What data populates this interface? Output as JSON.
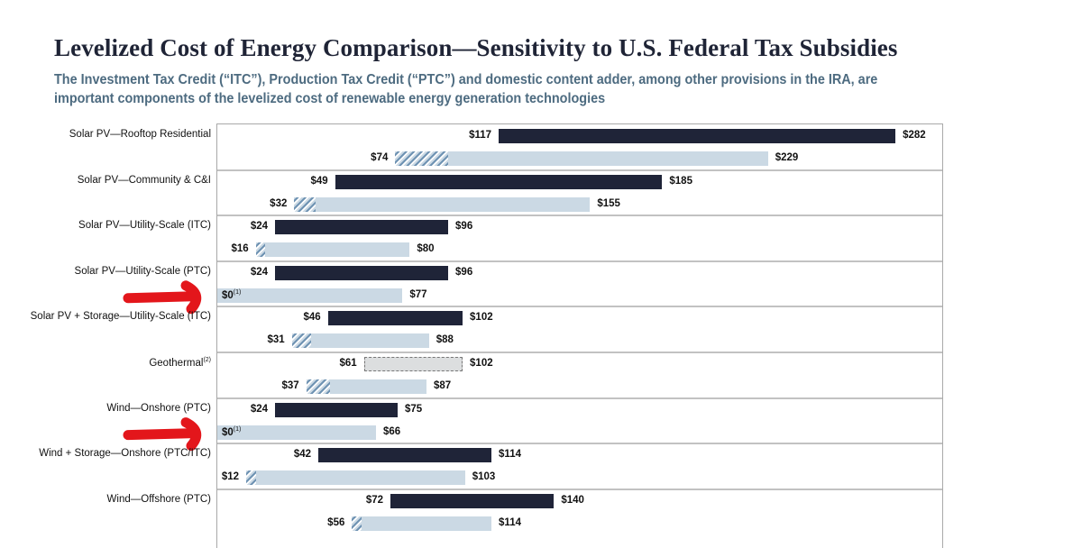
{
  "title": "Levelized Cost of Energy Comparison—Sensitivity to U.S. Federal Tax Subsidies",
  "subtitle": "The Investment Tax Credit (“ITC”), Production Tax Credit (“PTC”) and domestic content adder, among other provisions in the IRA, are important components of the levelized cost of renewable energy generation technologies",
  "chart_data": {
    "type": "bar",
    "orientation": "horizontal floating range",
    "xlim": [
      0,
      300
    ],
    "units": "$",
    "colors": {
      "unsubsidized": "#1f2438",
      "subsidized": "#cbd9e4",
      "hatch": "#6f93b3",
      "geothermal_unsubsidized": "#dcdedf",
      "annotation_arrow": "#e3161b"
    },
    "categories": [
      {
        "name": "Solar PV—Rooftop Residential",
        "sup": "",
        "unsubsidized": [
          117,
          282
        ],
        "subsidized": [
          74,
          229
        ],
        "hatched_to": 96,
        "low_note": ""
      },
      {
        "name": "Solar PV—Community & C&I",
        "sup": "",
        "unsubsidized": [
          49,
          185
        ],
        "subsidized": [
          32,
          155
        ],
        "hatched_to": 41,
        "low_note": ""
      },
      {
        "name": "Solar PV—Utility-Scale (ITC)",
        "sup": "",
        "unsubsidized": [
          24,
          96
        ],
        "subsidized": [
          16,
          80
        ],
        "hatched_to": 20,
        "low_note": ""
      },
      {
        "name": "Solar PV—Utility-Scale (PTC)",
        "sup": "",
        "unsubsidized": [
          24,
          96
        ],
        "subsidized": [
          0,
          77
        ],
        "hatched_to": null,
        "low_note": "(1)",
        "arrow": true
      },
      {
        "name": "Solar PV + Storage—Utility-Scale (ITC)",
        "sup": "",
        "unsubsidized": [
          46,
          102
        ],
        "subsidized": [
          31,
          88
        ],
        "hatched_to": 39,
        "low_note": ""
      },
      {
        "name": "Geothermal",
        "sup": "(2)",
        "unsubsidized": [
          61,
          102
        ],
        "subsidized": [
          37,
          87
        ],
        "hatched_to": 47,
        "low_note": "",
        "dashed_unsubsidized": true
      },
      {
        "name": "Wind—Onshore (PTC)",
        "sup": "",
        "unsubsidized": [
          24,
          75
        ],
        "subsidized": [
          0,
          66
        ],
        "hatched_to": null,
        "low_note": "(1)",
        "arrow": true
      },
      {
        "name": "Wind + Storage—Onshore (PTC/ITC)",
        "sup": "",
        "unsubsidized": [
          42,
          114
        ],
        "subsidized": [
          12,
          103
        ],
        "hatched_to": 16,
        "low_note": ""
      },
      {
        "name": "Wind—Offshore (PTC)",
        "sup": "",
        "unsubsidized": [
          72,
          140
        ],
        "subsidized": [
          56,
          114
        ],
        "hatched_to": 60,
        "low_note": ""
      }
    ]
  }
}
